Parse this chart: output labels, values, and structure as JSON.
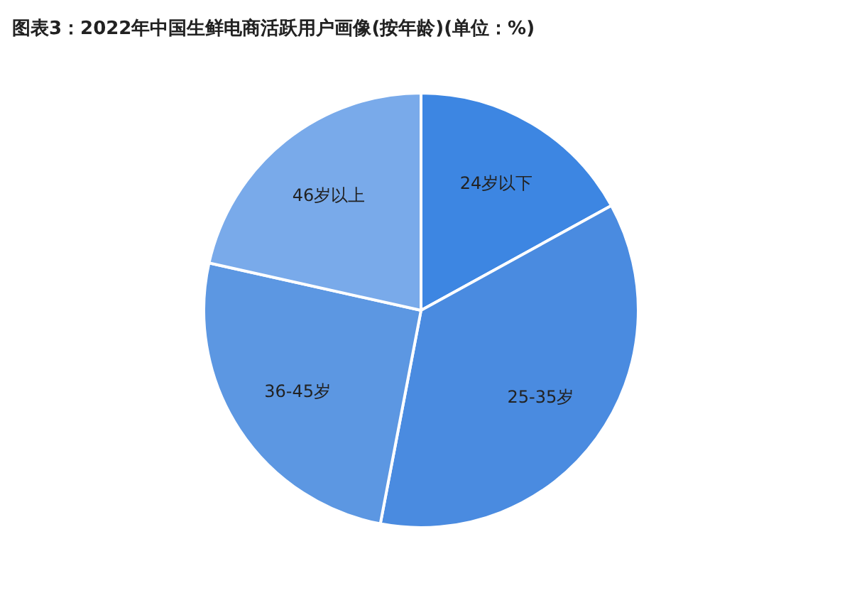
{
  "chart_data": {
    "type": "pie",
    "title": "图表3：2022年中国生鲜电商活跃用户画像(按年龄)(单位：%)",
    "categories": [
      "24岁以下",
      "25-35岁",
      "36-45岁",
      "46岁以上"
    ],
    "values": [
      17,
      36,
      25.5,
      21.5
    ],
    "colors": [
      "#3d86e2",
      "#4a8be0",
      "#5c97e2",
      "#79aaea"
    ]
  }
}
